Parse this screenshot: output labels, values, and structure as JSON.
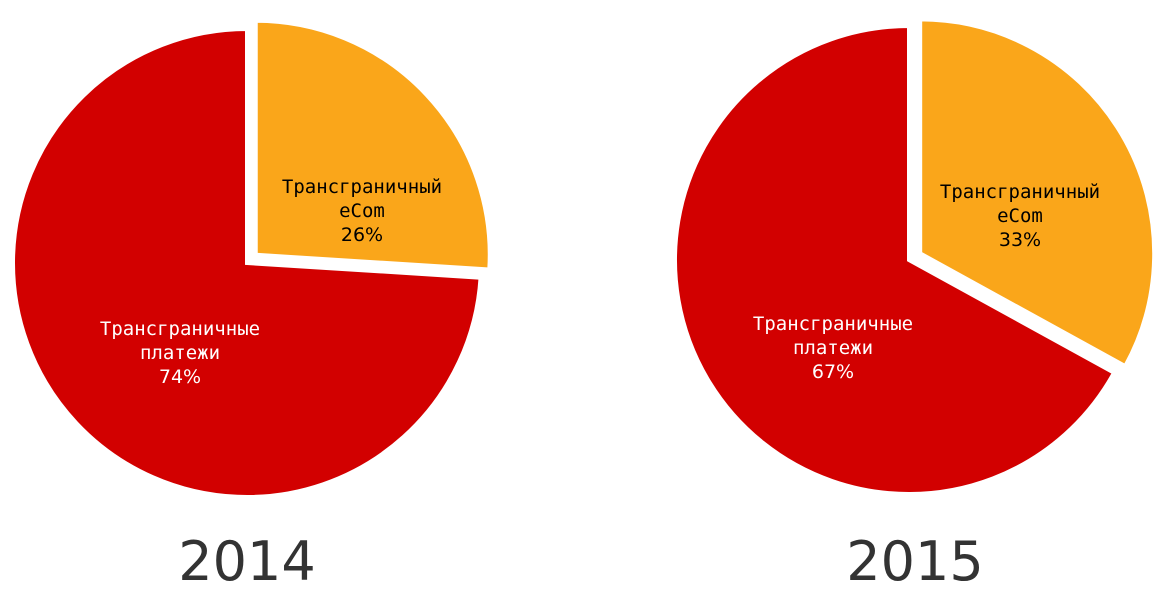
{
  "chart_data": [
    {
      "type": "pie",
      "title": "2014",
      "slices": [
        {
          "label_line1": "Трансграничный",
          "label_line2": "eCom",
          "value": 26,
          "value_label": "26%",
          "color": "#FAA61A",
          "label_color": "#000000",
          "exploded": true
        },
        {
          "label_line1": "Трансграничные",
          "label_line2": "платежи",
          "value": 74,
          "value_label": "74%",
          "color": "#D20000",
          "label_color": "#FFFFFF",
          "exploded": false
        }
      ]
    },
    {
      "type": "pie",
      "title": "2015",
      "slices": [
        {
          "label_line1": "Трансграничный",
          "label_line2": "eCom",
          "value": 33,
          "value_label": "33%",
          "color": "#FAA61A",
          "label_color": "#000000",
          "exploded": true
        },
        {
          "label_line1": "Трансграничные",
          "label_line2": "платежи",
          "value": 67,
          "value_label": "67%",
          "color": "#D20000",
          "label_color": "#FFFFFF",
          "exploded": false
        }
      ]
    }
  ]
}
